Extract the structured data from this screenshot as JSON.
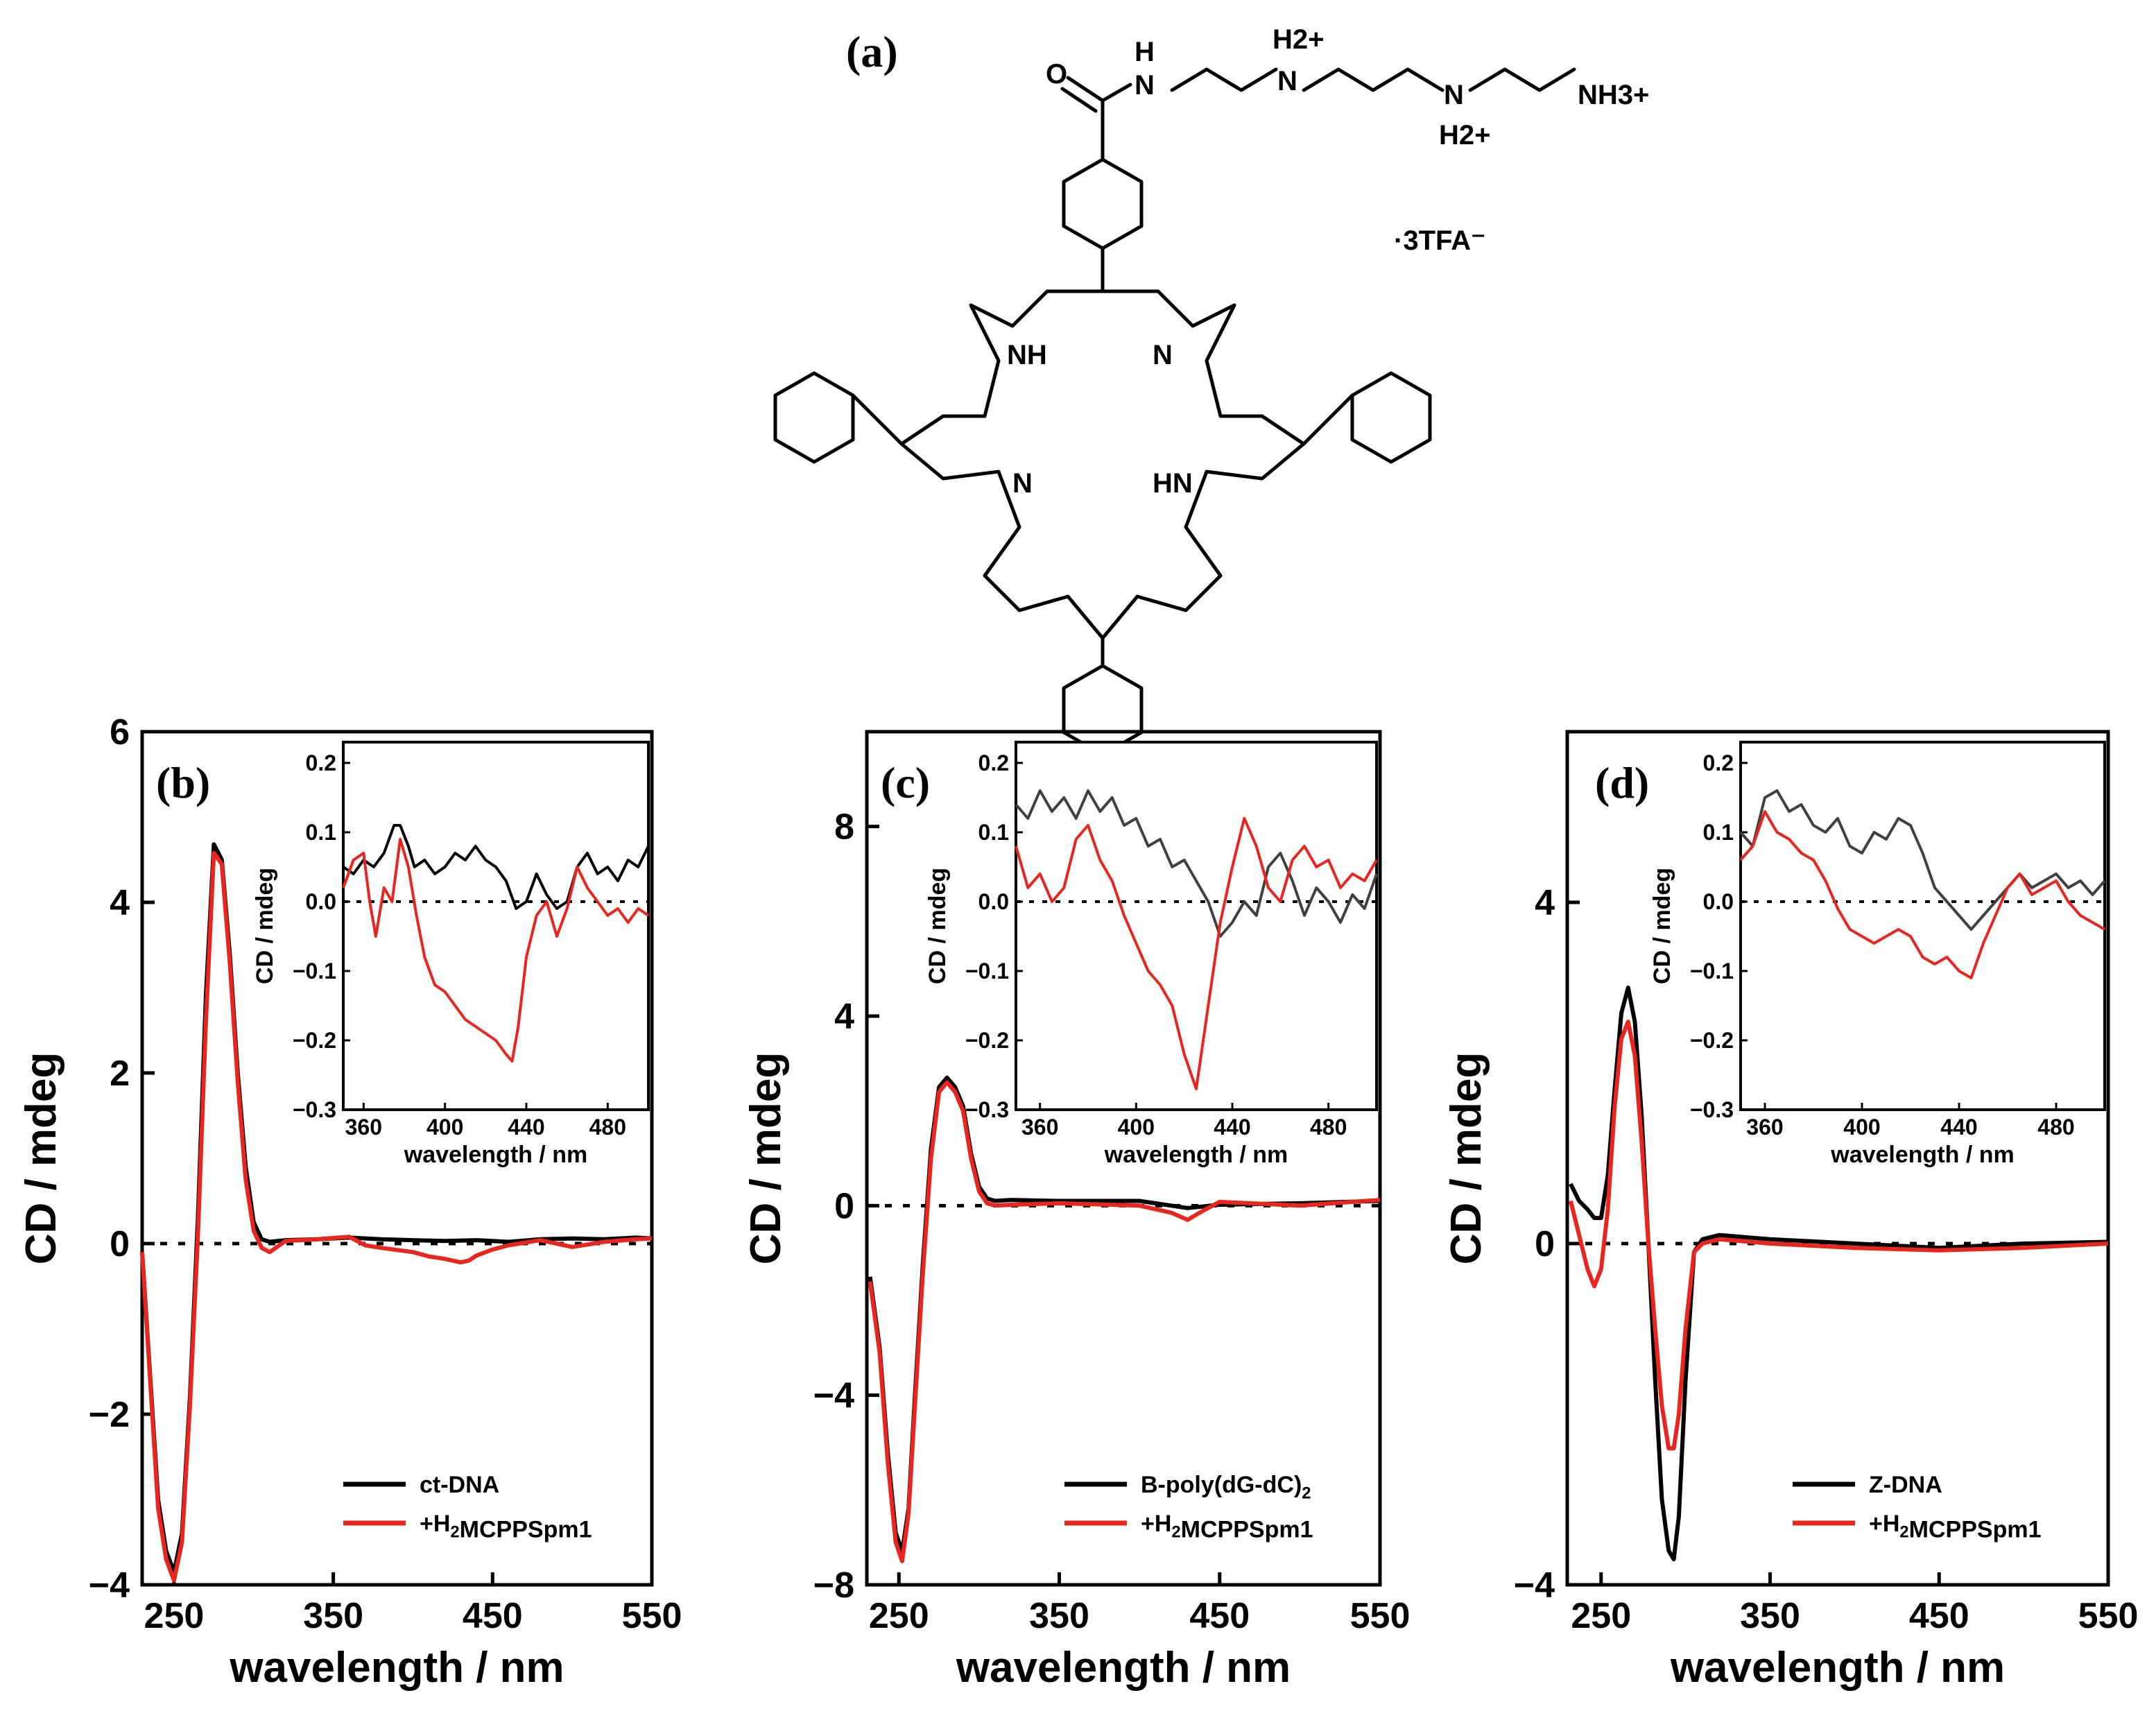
{
  "figure_labels": {
    "a": "(a)",
    "b": "(b)",
    "c": "(c)",
    "d": "(d)"
  },
  "molecule": {
    "atoms": {
      "O": "O",
      "NH_amide": "N",
      "H_amide": "H",
      "N_plus1": "N",
      "H2_plus1": "H2+",
      "N_plus2": "N",
      "H2_plus2": "H2+",
      "NH3_plus": "NH3+",
      "NH_pyrrole1": "NH",
      "N_pyrrole2": "N",
      "N_pyrrole3": "N",
      "NH_pyrrole4": "HN"
    },
    "counterion": "·3TFA⁻"
  },
  "chart_data": [
    {
      "panel": "b",
      "type": "line",
      "xlabel": "wavelength / nm",
      "ylabel": "CD / mdeg",
      "xlim": [
        230,
        550
      ],
      "ylim": [
        -4,
        6
      ],
      "xticks": [
        250,
        350,
        450,
        550
      ],
      "yticks": [
        -4,
        -2,
        0,
        2,
        4,
        6
      ],
      "ytick_labels": [
        "−4",
        "−2",
        "0",
        "2",
        "4",
        "6"
      ],
      "zero_line": true,
      "legend_position": "bottom-right",
      "series": [
        {
          "name": "ct-DNA",
          "color": "#000000",
          "x": [
            230,
            240,
            245,
            250,
            255,
            260,
            265,
            270,
            275,
            280,
            285,
            290,
            295,
            300,
            305,
            310,
            320,
            340,
            360,
            380,
            400,
            420,
            440,
            460,
            480,
            500,
            520,
            540,
            550
          ],
          "y": [
            -0.1,
            -3.0,
            -3.6,
            -3.85,
            -3.4,
            -1.8,
            0.3,
            2.9,
            4.68,
            4.5,
            3.4,
            2.0,
            0.9,
            0.25,
            0.05,
            0.02,
            0.04,
            0.05,
            0.07,
            0.05,
            0.04,
            0.03,
            0.04,
            0.02,
            0.05,
            0.06,
            0.05,
            0.07,
            0.06
          ]
        },
        {
          "name": "+H2MCPPSpm1",
          "color": "#e8251f",
          "x": [
            230,
            240,
            245,
            250,
            255,
            260,
            265,
            270,
            275,
            280,
            285,
            290,
            295,
            300,
            305,
            310,
            320,
            340,
            360,
            370,
            380,
            400,
            410,
            420,
            430,
            435,
            440,
            450,
            460,
            480,
            500,
            520,
            540,
            550
          ],
          "y": [
            -0.1,
            -3.1,
            -3.7,
            -3.95,
            -3.5,
            -1.9,
            0.1,
            2.6,
            4.58,
            4.45,
            3.3,
            1.9,
            0.75,
            0.15,
            -0.05,
            -0.1,
            0.03,
            0.05,
            0.08,
            -0.02,
            -0.05,
            -0.1,
            -0.15,
            -0.18,
            -0.22,
            -0.2,
            -0.14,
            -0.07,
            -0.02,
            0.04,
            -0.04,
            0.02,
            0.05,
            0.06
          ]
        }
      ],
      "inset": {
        "xlabel": "wavelength / nm",
        "ylabel": "CD / mdeg",
        "xlim": [
          350,
          500
        ],
        "ylim": [
          -0.3,
          0.23
        ],
        "xticks": [
          360,
          400,
          440,
          480
        ],
        "yticks": [
          -0.3,
          -0.2,
          -0.1,
          0.0,
          0.1,
          0.2
        ],
        "ytick_labels": [
          "−0.3",
          "−0.2",
          "−0.1",
          "0.0",
          "0.1",
          "0.2"
        ],
        "series": [
          {
            "name": "ct-DNA",
            "color": "#000000",
            "x": [
              350,
              355,
              360,
              365,
              370,
              375,
              378,
              382,
              385,
              390,
              395,
              400,
              405,
              410,
              415,
              420,
              425,
              430,
              435,
              440,
              445,
              450,
              455,
              460,
              465,
              470,
              475,
              480,
              485,
              490,
              495,
              500
            ],
            "y": [
              0.05,
              0.04,
              0.06,
              0.05,
              0.07,
              0.11,
              0.11,
              0.08,
              0.05,
              0.06,
              0.04,
              0.05,
              0.07,
              0.06,
              0.08,
              0.06,
              0.05,
              0.03,
              -0.01,
              0.0,
              0.04,
              0.01,
              -0.01,
              0.0,
              0.05,
              0.07,
              0.04,
              0.05,
              0.03,
              0.06,
              0.05,
              0.08
            ]
          },
          {
            "name": "+H2MCPPSpm1",
            "color": "#e8251f",
            "x": [
              350,
              355,
              360,
              363,
              366,
              370,
              374,
              378,
              382,
              386,
              390,
              395,
              400,
              405,
              410,
              415,
              420,
              425,
              430,
              433,
              436,
              440,
              445,
              450,
              455,
              460,
              465,
              470,
              475,
              480,
              485,
              490,
              495,
              500
            ],
            "y": [
              0.02,
              0.06,
              0.07,
              0.0,
              -0.05,
              0.02,
              0.0,
              0.09,
              0.05,
              -0.02,
              -0.08,
              -0.12,
              -0.13,
              -0.15,
              -0.17,
              -0.18,
              -0.19,
              -0.2,
              -0.22,
              -0.23,
              -0.18,
              -0.08,
              -0.02,
              0.0,
              -0.05,
              -0.01,
              0.05,
              0.02,
              0.0,
              -0.02,
              -0.01,
              -0.03,
              -0.01,
              -0.02
            ]
          }
        ]
      }
    },
    {
      "panel": "c",
      "type": "line",
      "xlabel": "wavelength / nm",
      "ylabel": "CD / mdeg",
      "xlim": [
        230,
        550
      ],
      "ylim": [
        -8,
        10
      ],
      "xticks": [
        250,
        350,
        450,
        550
      ],
      "yticks": [
        -8,
        -4,
        0,
        4,
        8
      ],
      "ytick_labels": [
        "−8",
        "−4",
        "0",
        "4",
        "8"
      ],
      "zero_line": true,
      "legend_position": "bottom-right",
      "series": [
        {
          "name": "B-poly(dG-dC)2",
          "color": "#000000",
          "x": [
            232,
            238,
            243,
            248,
            252,
            256,
            260,
            265,
            270,
            275,
            280,
            285,
            290,
            295,
            300,
            305,
            310,
            320,
            350,
            400,
            430,
            450,
            500,
            550
          ],
          "y": [
            -1.5,
            -3.0,
            -5.2,
            -6.9,
            -7.3,
            -6.4,
            -4.0,
            -1.2,
            1.2,
            2.5,
            2.7,
            2.5,
            2.1,
            1.1,
            0.4,
            0.15,
            0.1,
            0.12,
            0.1,
            0.1,
            -0.05,
            0.02,
            0.05,
            0.1
          ]
        },
        {
          "name": "+H2MCPPSpm1",
          "color": "#e8251f",
          "x": [
            232,
            238,
            243,
            248,
            252,
            256,
            260,
            265,
            270,
            275,
            280,
            285,
            290,
            295,
            300,
            305,
            310,
            320,
            350,
            400,
            420,
            430,
            440,
            450,
            500,
            550
          ],
          "y": [
            -1.6,
            -3.1,
            -5.4,
            -7.1,
            -7.5,
            -6.5,
            -4.2,
            -1.4,
            1.0,
            2.4,
            2.6,
            2.4,
            2.0,
            1.0,
            0.3,
            0.05,
            0.0,
            0.02,
            0.05,
            0.0,
            -0.15,
            -0.3,
            -0.1,
            0.08,
            0.0,
            0.12
          ]
        }
      ],
      "inset": {
        "xlabel": "wavelength / nm",
        "ylabel": "CD / mdeg",
        "xlim": [
          350,
          500
        ],
        "ylim": [
          -0.3,
          0.23
        ],
        "xticks": [
          360,
          400,
          440,
          480
        ],
        "yticks": [
          -0.3,
          -0.2,
          -0.1,
          0.0,
          0.1,
          0.2
        ],
        "ytick_labels": [
          "−0.3",
          "−0.2",
          "−0.1",
          "0.0",
          "0.1",
          "0.2"
        ],
        "series": [
          {
            "name": "B-poly(dG-dC)2",
            "color": "#404040",
            "x": [
              350,
              355,
              360,
              365,
              370,
              375,
              380,
              385,
              390,
              395,
              400,
              405,
              410,
              415,
              420,
              425,
              430,
              435,
              440,
              445,
              450,
              455,
              460,
              465,
              470,
              475,
              480,
              485,
              490,
              495,
              500
            ],
            "y": [
              0.14,
              0.12,
              0.16,
              0.13,
              0.15,
              0.12,
              0.16,
              0.13,
              0.15,
              0.11,
              0.12,
              0.08,
              0.09,
              0.05,
              0.06,
              0.03,
              0.0,
              -0.05,
              -0.03,
              0.0,
              -0.02,
              0.05,
              0.07,
              0.03,
              -0.02,
              0.02,
              0.0,
              -0.03,
              0.01,
              -0.01,
              0.04
            ]
          },
          {
            "name": "+H2MCPPSpm1",
            "color": "#e8251f",
            "x": [
              350,
              355,
              360,
              365,
              370,
              375,
              380,
              385,
              390,
              395,
              400,
              405,
              410,
              415,
              420,
              425,
              430,
              435,
              440,
              445,
              450,
              455,
              460,
              465,
              470,
              475,
              480,
              485,
              490,
              495,
              500
            ],
            "y": [
              0.08,
              0.02,
              0.04,
              0.0,
              0.02,
              0.09,
              0.11,
              0.06,
              0.03,
              -0.02,
              -0.06,
              -0.1,
              -0.12,
              -0.15,
              -0.22,
              -0.27,
              -0.15,
              -0.03,
              0.05,
              0.12,
              0.08,
              0.02,
              0.0,
              0.06,
              0.08,
              0.05,
              0.06,
              0.02,
              0.04,
              0.03,
              0.06
            ]
          }
        ]
      }
    },
    {
      "panel": "d",
      "type": "line",
      "xlabel": "wavelength / nm",
      "ylabel": "CD / mdeg",
      "xlim": [
        230,
        550
      ],
      "ylim": [
        -4,
        6
      ],
      "xticks": [
        250,
        350,
        450,
        550
      ],
      "yticks": [
        -4,
        0,
        4
      ],
      "ytick_labels": [
        "−4",
        "0",
        "4"
      ],
      "zero_line": true,
      "legend_position": "bottom-right",
      "series": [
        {
          "name": "Z-DNA",
          "color": "#000000",
          "x": [
            232,
            237,
            242,
            246,
            250,
            254,
            258,
            262,
            266,
            270,
            274,
            278,
            282,
            286,
            290,
            293,
            296,
            300,
            305,
            310,
            320,
            350,
            400,
            450,
            500,
            550
          ],
          "y": [
            0.7,
            0.5,
            0.4,
            0.3,
            0.3,
            0.8,
            1.8,
            2.7,
            3.0,
            2.6,
            1.5,
            0.0,
            -1.6,
            -3.0,
            -3.6,
            -3.7,
            -3.2,
            -1.6,
            -0.1,
            0.05,
            0.1,
            0.05,
            0.0,
            -0.05,
            0.0,
            0.02
          ]
        },
        {
          "name": "+H2MCPPSpm1",
          "color": "#e8251f",
          "x": [
            232,
            237,
            242,
            246,
            250,
            254,
            258,
            262,
            266,
            270,
            274,
            278,
            282,
            286,
            290,
            293,
            296,
            300,
            305,
            310,
            320,
            350,
            400,
            450,
            500,
            550
          ],
          "y": [
            0.5,
            0.1,
            -0.3,
            -0.5,
            -0.3,
            0.4,
            1.6,
            2.4,
            2.6,
            2.2,
            1.2,
            0.0,
            -1.0,
            -1.9,
            -2.4,
            -2.4,
            -2.0,
            -1.0,
            -0.1,
            0.0,
            0.05,
            0.0,
            -0.05,
            -0.08,
            -0.05,
            0.0
          ]
        }
      ],
      "inset": {
        "xlabel": "wavelength / nm",
        "ylabel": "CD / mdeg",
        "xlim": [
          350,
          500
        ],
        "ylim": [
          -0.3,
          0.23
        ],
        "xticks": [
          360,
          400,
          440,
          480
        ],
        "yticks": [
          -0.3,
          -0.2,
          -0.1,
          0.0,
          0.1,
          0.2
        ],
        "ytick_labels": [
          "−0.3",
          "−0.2",
          "−0.1",
          "0.0",
          "0.1",
          "0.2"
        ],
        "series": [
          {
            "name": "Z-DNA",
            "color": "#404040",
            "x": [
              350,
              355,
              360,
              365,
              370,
              375,
              380,
              385,
              390,
              395,
              400,
              405,
              410,
              415,
              420,
              425,
              430,
              435,
              440,
              445,
              450,
              455,
              460,
              465,
              470,
              475,
              480,
              485,
              490,
              495,
              500
            ],
            "y": [
              0.1,
              0.08,
              0.15,
              0.16,
              0.13,
              0.14,
              0.11,
              0.1,
              0.12,
              0.08,
              0.07,
              0.1,
              0.09,
              0.12,
              0.11,
              0.07,
              0.02,
              0.0,
              -0.02,
              -0.04,
              -0.02,
              0.0,
              0.02,
              0.04,
              0.02,
              0.03,
              0.04,
              0.02,
              0.03,
              0.01,
              0.03
            ]
          },
          {
            "name": "+H2MCPPSpm1",
            "color": "#e8251f",
            "x": [
              350,
              355,
              360,
              365,
              370,
              375,
              380,
              385,
              390,
              395,
              400,
              405,
              410,
              415,
              420,
              425,
              430,
              435,
              440,
              445,
              450,
              455,
              460,
              465,
              470,
              475,
              480,
              485,
              490,
              495,
              500
            ],
            "y": [
              0.06,
              0.08,
              0.13,
              0.1,
              0.09,
              0.07,
              0.06,
              0.03,
              -0.01,
              -0.04,
              -0.05,
              -0.06,
              -0.05,
              -0.04,
              -0.05,
              -0.08,
              -0.09,
              -0.08,
              -0.1,
              -0.11,
              -0.06,
              -0.02,
              0.02,
              0.04,
              0.01,
              0.02,
              0.03,
              0.0,
              -0.02,
              -0.03,
              -0.04
            ]
          }
        ]
      }
    }
  ]
}
